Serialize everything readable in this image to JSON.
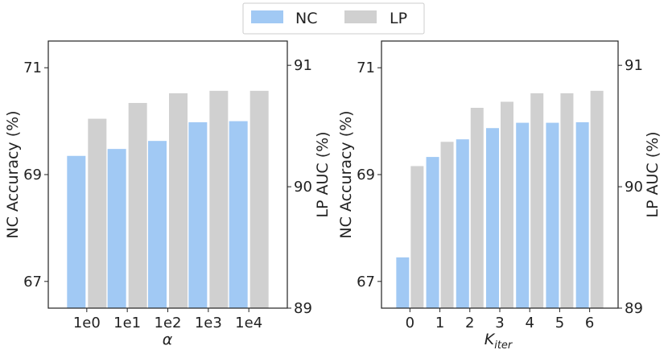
{
  "legend": {
    "items": [
      {
        "label": "NC",
        "color": "#a1c9f4"
      },
      {
        "label": "LP",
        "color": "#d0d0d0"
      }
    ]
  },
  "chart_data": [
    {
      "type": "bar",
      "categories": [
        "1e0",
        "1e1",
        "1e2",
        "1e3",
        "1e4"
      ],
      "xlabel": "α",
      "ylabel": "NC Accuracy (%)",
      "y2label": "LP AUC (%)",
      "ylim": [
        66.5,
        71.5
      ],
      "y2lim": [
        89,
        91.2
      ],
      "yticks": [
        67,
        69,
        71
      ],
      "y2ticks": [
        89,
        90,
        91
      ],
      "ytick_labels": [
        "67",
        "69",
        "71"
      ],
      "y2tick_labels": [
        "89",
        "90",
        "91"
      ],
      "series": [
        {
          "name": "NC",
          "axis": "left",
          "values": [
            69.35,
            69.48,
            69.63,
            69.98,
            70.0
          ]
        },
        {
          "name": "LP",
          "axis": "right",
          "values": [
            90.56,
            90.69,
            90.77,
            90.79,
            90.79
          ]
        }
      ]
    },
    {
      "type": "bar",
      "categories": [
        "0",
        "1",
        "2",
        "3",
        "4",
        "5",
        "6"
      ],
      "xlabel": "K",
      "xlabel_sub": "iter",
      "ylabel": "NC Accuracy (%)",
      "y2label": "LP AUC (%)",
      "ylim": [
        66.5,
        71.5
      ],
      "y2lim": [
        89,
        91.2
      ],
      "yticks": [
        67,
        69,
        71
      ],
      "y2ticks": [
        89,
        90,
        91
      ],
      "ytick_labels": [
        "67",
        "69",
        "71"
      ],
      "y2tick_labels": [
        "89",
        "90",
        "91"
      ],
      "series": [
        {
          "name": "NC",
          "axis": "left",
          "values": [
            67.45,
            69.33,
            69.66,
            69.87,
            69.97,
            69.97,
            69.98
          ]
        },
        {
          "name": "LP",
          "axis": "right",
          "values": [
            90.17,
            90.37,
            90.65,
            90.7,
            90.77,
            90.77,
            90.79
          ]
        }
      ]
    }
  ]
}
